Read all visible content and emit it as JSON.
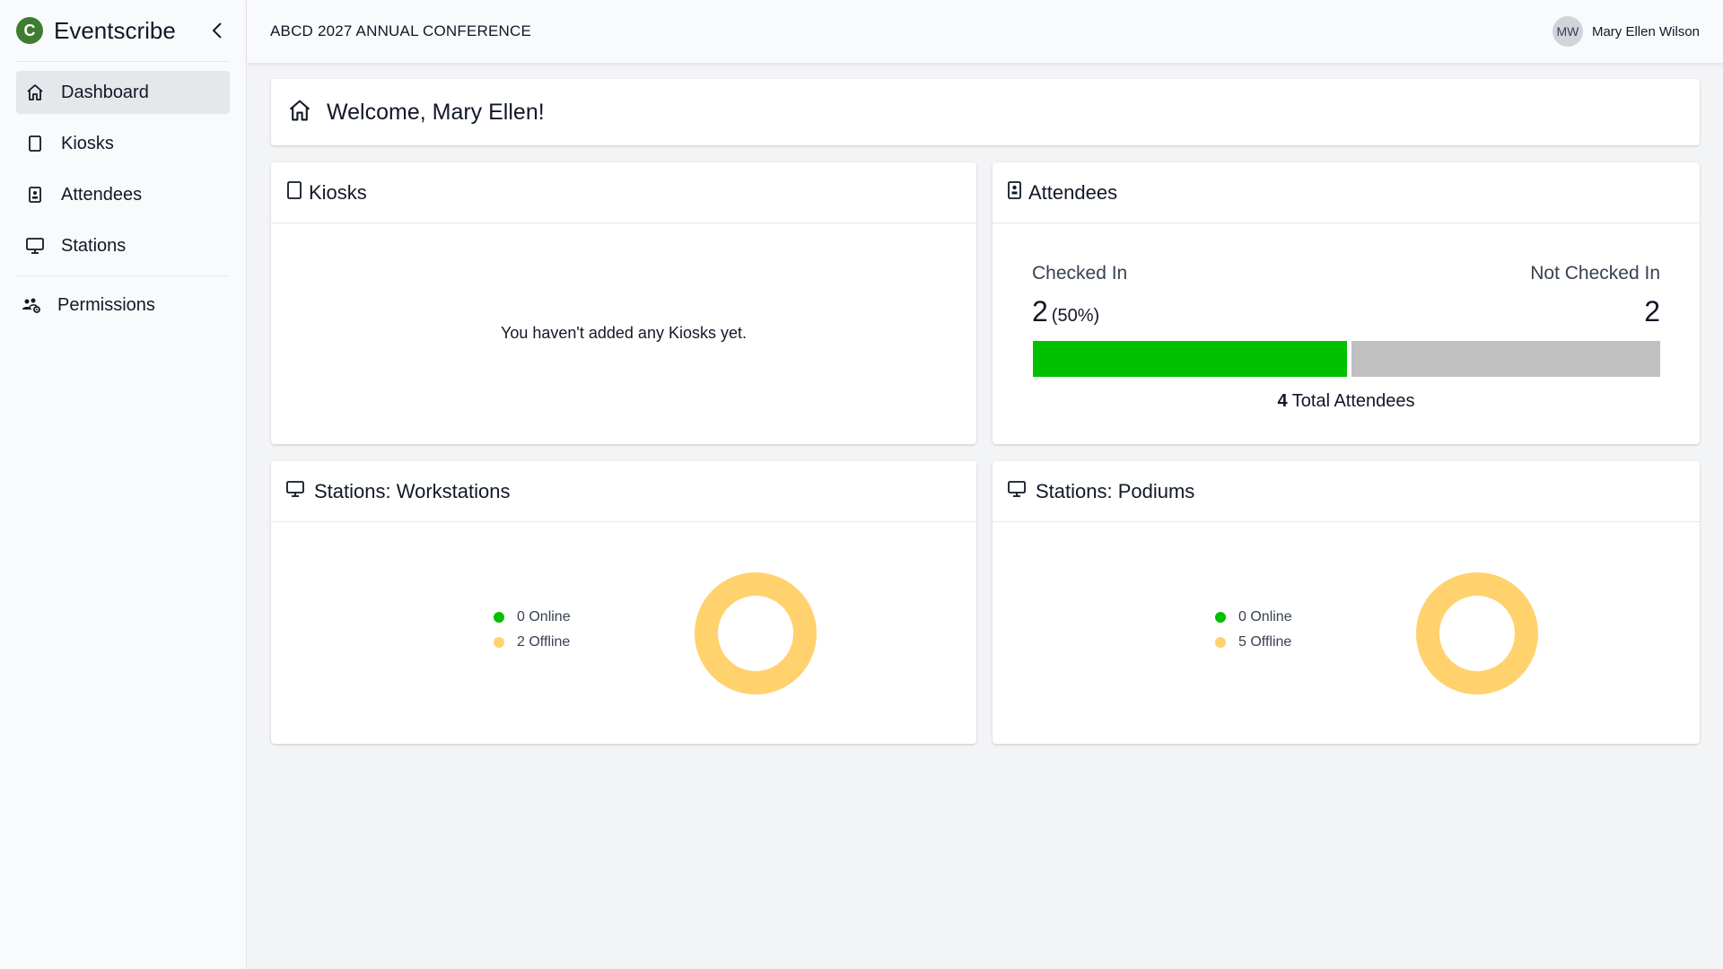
{
  "brand": {
    "name": "Eventscribe",
    "logo_letter": "C",
    "color": "#3f7d32"
  },
  "sidebar": {
    "items": [
      {
        "label": "Dashboard",
        "icon": "home-icon",
        "active": true
      },
      {
        "label": "Kiosks",
        "icon": "tablet-icon"
      },
      {
        "label": "Attendees",
        "icon": "badge-icon"
      },
      {
        "label": "Stations",
        "icon": "monitor-icon"
      }
    ],
    "secondary": [
      {
        "label": "Permissions",
        "icon": "users-gear-icon"
      }
    ]
  },
  "topbar": {
    "event_title": "ABCD 2027 ANNUAL CONFERENCE",
    "user_initials": "MW",
    "user_name": "Mary Ellen Wilson"
  },
  "welcome": {
    "title": "Welcome, Mary Ellen!"
  },
  "kiosks": {
    "title": "Kiosks",
    "empty_message": "You haven't added any Kiosks yet."
  },
  "attendees": {
    "title": "Attendees",
    "checked_in_label": "Checked In",
    "not_checked_in_label": "Not Checked In",
    "checked_in_count": "2",
    "checked_in_percent": "(50%)",
    "not_checked_in_count": "2",
    "checked_in_fraction": 0.5,
    "total_count": "4",
    "total_label": "Total Attendees",
    "colors": {
      "checked_in": "#00c000",
      "not_checked_in": "#c0c0c0"
    }
  },
  "workstations": {
    "title": "Stations: Workstations",
    "online_label": "0 Online",
    "offline_label": "2 Offline",
    "online": 0,
    "offline": 2
  },
  "podiums": {
    "title": "Stations: Podiums",
    "online_label": "0 Online",
    "offline_label": "5 Offline",
    "online": 0,
    "offline": 5
  },
  "status_colors": {
    "online": "#00c000",
    "offline": "#ffd26e"
  }
}
